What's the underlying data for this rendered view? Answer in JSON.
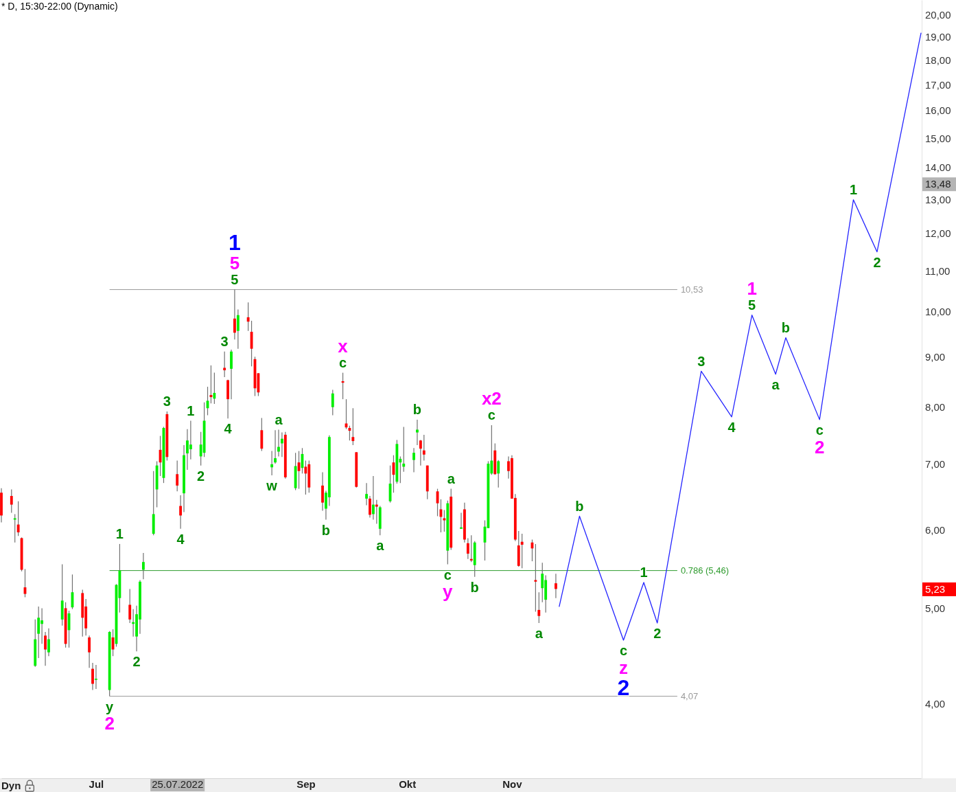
{
  "chart_data": {
    "type": "candlestick",
    "title": "* D, 15:30-22:00 (Dynamic)",
    "x": [
      "2022-06-03",
      "2022-06-06",
      "2022-06-07",
      "2022-06-08",
      "2022-06-09",
      "2022-06-10",
      "2022-06-13",
      "2022-06-14",
      "2022-06-15",
      "2022-06-16",
      "2022-06-17",
      "2022-06-21",
      "2022-06-22",
      "2022-06-23",
      "2022-06-24",
      "2022-06-27",
      "2022-06-28",
      "2022-06-29",
      "2022-06-30",
      "2022-07-01",
      "2022-07-05",
      "2022-07-06",
      "2022-07-07",
      "2022-07-08",
      "2022-07-11",
      "2022-07-12",
      "2022-07-13",
      "2022-07-14",
      "2022-07-15",
      "2022-07-18",
      "2022-07-19",
      "2022-07-20",
      "2022-07-21",
      "2022-07-22",
      "2022-07-25",
      "2022-07-26",
      "2022-07-27",
      "2022-07-28",
      "2022-07-29",
      "2022-08-01",
      "2022-08-02",
      "2022-08-03",
      "2022-08-04",
      "2022-08-05",
      "2022-08-08",
      "2022-08-09",
      "2022-08-10",
      "2022-08-11",
      "2022-08-12",
      "2022-08-15",
      "2022-08-16",
      "2022-08-17",
      "2022-08-18",
      "2022-08-19",
      "2022-08-22",
      "2022-08-23",
      "2022-08-24",
      "2022-08-25",
      "2022-08-26",
      "2022-08-29",
      "2022-08-30",
      "2022-08-31",
      "2022-09-01",
      "2022-09-02",
      "2022-09-06",
      "2022-09-07",
      "2022-09-08",
      "2022-09-09",
      "2022-09-12",
      "2022-09-13",
      "2022-09-14",
      "2022-09-15",
      "2022-09-16",
      "2022-09-19",
      "2022-09-20",
      "2022-09-21",
      "2022-09-22",
      "2022-09-23",
      "2022-09-26",
      "2022-09-27",
      "2022-09-28",
      "2022-09-29",
      "2022-09-30",
      "2022-10-03",
      "2022-10-04",
      "2022-10-05",
      "2022-10-06",
      "2022-10-07",
      "2022-10-10",
      "2022-10-11",
      "2022-10-12",
      "2022-10-13",
      "2022-10-14",
      "2022-10-17",
      "2022-10-18",
      "2022-10-19",
      "2022-10-20",
      "2022-10-21",
      "2022-10-24",
      "2022-10-25",
      "2022-10-26",
      "2022-10-27",
      "2022-10-28",
      "2022-10-31",
      "2022-11-01",
      "2022-11-02",
      "2022-11-03",
      "2022-11-04",
      "2022-11-07",
      "2022-11-08",
      "2022-11-09",
      "2022-11-10",
      "2022-11-11",
      "2022-11-14"
    ],
    "ohlc": [
      [
        6.55,
        6.62,
        6.11,
        6.21
      ],
      [
        6.5,
        6.6,
        6.25,
        6.37
      ],
      [
        6.15,
        6.23,
        5.83,
        6.17
      ],
      [
        6.08,
        6.42,
        5.92,
        5.97
      ],
      [
        5.89,
        5.9,
        5.45,
        5.47
      ],
      [
        5.25,
        5.48,
        5.13,
        5.17
      ],
      [
        4.37,
        4.87,
        4.36,
        4.65
      ],
      [
        4.71,
        5.02,
        4.45,
        4.89
      ],
      [
        4.82,
        5.0,
        4.6,
        4.86
      ],
      [
        4.69,
        4.73,
        4.37,
        4.54
      ],
      [
        4.51,
        4.77,
        4.47,
        4.65
      ],
      [
        4.87,
        5.54,
        4.8,
        5.09
      ],
      [
        5.0,
        5.07,
        4.56,
        4.6
      ],
      [
        4.75,
        4.97,
        4.56,
        4.94
      ],
      [
        5.01,
        5.41,
        4.99,
        5.19
      ],
      [
        5.18,
        5.22,
        4.68,
        4.89
      ],
      [
        5.02,
        5.11,
        4.69,
        4.77
      ],
      [
        4.67,
        4.69,
        4.35,
        4.51
      ],
      [
        4.34,
        4.4,
        4.13,
        4.19
      ],
      [
        4.23,
        4.38,
        4.14,
        4.24
      ],
      [
        4.13,
        4.74,
        4.07,
        4.73
      ],
      [
        4.67,
        4.76,
        4.47,
        4.54
      ],
      [
        4.6,
        5.29,
        4.57,
        5.28
      ],
      [
        5.12,
        5.81,
        4.95,
        5.46
      ],
      [
        5.04,
        5.23,
        4.83,
        4.87
      ],
      [
        4.82,
        4.99,
        4.68,
        4.84
      ],
      [
        4.68,
        5.03,
        4.52,
        4.93
      ],
      [
        4.87,
        5.34,
        4.71,
        5.32
      ],
      [
        5.47,
        5.69,
        5.35,
        5.57
      ],
      [
        5.95,
        6.89,
        5.93,
        6.23
      ],
      [
        6.6,
        7.05,
        6.33,
        6.98
      ],
      [
        7.24,
        7.48,
        6.81,
        7.03
      ],
      [
        6.78,
        7.64,
        6.7,
        7.62
      ],
      [
        7.87,
        7.92,
        7.06,
        7.12
      ],
      [
        6.84,
        7.06,
        6.57,
        6.66
      ],
      [
        6.35,
        6.51,
        6.02,
        6.21
      ],
      [
        6.54,
        7.32,
        6.26,
        7.15
      ],
      [
        7.18,
        7.6,
        6.91,
        7.4
      ],
      [
        7.25,
        7.75,
        7.08,
        7.33
      ],
      [
        7.13,
        7.55,
        6.98,
        7.33
      ],
      [
        7.19,
        8.09,
        7.12,
        7.75
      ],
      [
        7.98,
        8.39,
        7.85,
        8.12
      ],
      [
        8.23,
        8.82,
        8.07,
        8.19
      ],
      [
        8.16,
        8.67,
        8.06,
        8.27
      ],
      [
        8.77,
        9.11,
        8.58,
        8.72
      ],
      [
        8.52,
        8.53,
        7.79,
        8.15
      ],
      [
        8.75,
        9.15,
        8.15,
        9.11
      ],
      [
        9.84,
        10.53,
        9.37,
        9.52
      ],
      [
        9.56,
        10.05,
        9.17,
        9.92
      ],
      [
        9.87,
        10.22,
        9.56,
        9.77
      ],
      [
        9.54,
        9.79,
        8.8,
        9.17
      ],
      [
        8.95,
        9.0,
        8.21,
        8.36
      ],
      [
        8.66,
        8.66,
        8.21,
        8.28
      ],
      [
        7.58,
        7.8,
        7.22,
        7.26
      ],
      [
        6.95,
        7.22,
        6.82,
        7.0
      ],
      [
        7.03,
        7.58,
        7.01,
        7.1
      ],
      [
        7.21,
        7.59,
        7.13,
        7.29
      ],
      [
        7.35,
        7.54,
        7.12,
        7.43
      ],
      [
        7.5,
        7.55,
        6.77,
        6.79
      ],
      [
        6.62,
        7.19,
        6.59,
        6.97
      ],
      [
        7.03,
        7.22,
        6.61,
        6.89
      ],
      [
        6.94,
        7.27,
        6.85,
        7.17
      ],
      [
        6.96,
        7.06,
        6.52,
        6.85
      ],
      [
        7.0,
        7.06,
        6.55,
        6.63
      ],
      [
        6.66,
        6.87,
        6.28,
        6.4
      ],
      [
        6.31,
        6.58,
        6.15,
        6.55
      ],
      [
        6.48,
        7.49,
        6.35,
        7.46
      ],
      [
        8.0,
        8.33,
        7.85,
        8.26
      ],
      [
        8.5,
        8.67,
        8.15,
        8.47
      ],
      [
        7.7,
        8.15,
        7.6,
        7.63
      ],
      [
        7.62,
        7.66,
        7.4,
        7.57
      ],
      [
        7.46,
        7.98,
        7.32,
        7.39
      ],
      [
        7.2,
        7.2,
        6.63,
        6.64
      ],
      [
        6.46,
        6.7,
        6.36,
        6.53
      ],
      [
        6.46,
        6.5,
        6.18,
        6.22
      ],
      [
        6.23,
        6.81,
        6.15,
        6.37
      ],
      [
        6.37,
        6.44,
        6.09,
        6.34
      ],
      [
        6.02,
        6.35,
        5.93,
        6.33
      ],
      [
        6.42,
        6.98,
        6.4,
        6.69
      ],
      [
        7.03,
        7.15,
        6.55,
        6.83
      ],
      [
        6.72,
        7.41,
        6.69,
        7.34
      ],
      [
        7.03,
        7.13,
        6.7,
        7.09
      ],
      [
        6.96,
        7.64,
        6.88,
        7.01
      ],
      [
        7.07,
        7.27,
        6.87,
        7.19
      ],
      [
        7.54,
        7.77,
        7.32,
        7.59
      ],
      [
        7.4,
        7.41,
        6.98,
        7.26
      ],
      [
        7.23,
        7.5,
        7.06,
        7.16
      ],
      [
        6.98,
        6.98,
        6.45,
        6.57
      ],
      [
        6.57,
        6.61,
        6.2,
        6.39
      ],
      [
        6.3,
        6.45,
        5.97,
        6.19
      ],
      [
        6.17,
        6.29,
        5.98,
        6.14
      ],
      [
        5.72,
        6.43,
        5.54,
        6.39
      ],
      [
        6.49,
        6.61,
        5.73,
        5.76
      ],
      [
        6.02,
        6.25,
        6.02,
        6.04
      ],
      [
        6.3,
        6.4,
        5.83,
        5.87
      ],
      [
        5.82,
        5.89,
        5.61,
        5.68
      ],
      [
        5.61,
        5.93,
        5.57,
        5.59
      ],
      [
        5.53,
        5.85,
        5.38,
        5.83
      ],
      [
        5.83,
        6.14,
        5.59,
        6.05
      ],
      [
        6.03,
        7.05,
        6.03,
        7.01
      ],
      [
        6.85,
        7.67,
        6.83,
        7.06
      ],
      [
        7.23,
        7.35,
        6.83,
        6.84
      ],
      [
        6.85,
        7.07,
        6.63,
        7.05
      ],
      [
        7.05,
        7.13,
        6.77,
        6.89
      ],
      [
        7.1,
        7.15,
        6.46,
        6.46
      ],
      [
        6.47,
        6.53,
        5.85,
        5.87
      ],
      [
        5.79,
        5.99,
        5.51,
        5.52
      ],
      [
        5.84,
        5.95,
        5.49,
        5.8
      ],
      [
        5.83,
        5.87,
        5.58,
        5.75
      ],
      [
        5.34,
        5.81,
        4.96,
        5.32
      ],
      [
        4.98,
        5.19,
        4.83,
        4.91
      ],
      [
        5.24,
        5.56,
        5.07,
        5.42
      ],
      [
        5.1,
        5.4,
        4.95,
        5.34
      ],
      [
        5.3,
        5.42,
        5.12,
        5.23
      ]
    ],
    "colors": [
      "#ff0000",
      "#ff0000",
      "#00ee00",
      "#ff0000",
      "#ff0000",
      "#ff0000",
      "#00ee00",
      "#00ee00",
      "#00ee00",
      "#ff0000",
      "#00ee00",
      "#00ee00",
      "#ff0000",
      "#00ee00",
      "#00ee00",
      "#ff0000",
      "#ff0000",
      "#ff0000",
      "#ff0000",
      "#00ee00",
      "#00ee00",
      "#ff0000",
      "#00ee00",
      "#00ee00",
      "#ff0000",
      "#00ee00",
      "#00ee00",
      "#00ee00",
      "#00ee00",
      "#00ee00",
      "#00ee00",
      "#ff0000",
      "#00ee00",
      "#ff0000",
      "#ff0000",
      "#ff0000",
      "#00ee00",
      "#00ee00",
      "#00ee00",
      "#00ee00",
      "#00ee00",
      "#00ee00",
      "#ff0000",
      "#00ee00",
      "#ff0000",
      "#ff0000",
      "#00ee00",
      "#ff0000",
      "#00ee00",
      "#ff0000",
      "#ff0000",
      "#ff0000",
      "#ff0000",
      "#ff0000",
      "#00ee00",
      "#00ee00",
      "#00ee00",
      "#00ee00",
      "#ff0000",
      "#00ee00",
      "#ff0000",
      "#00ee00",
      "#ff0000",
      "#ff0000",
      "#ff0000",
      "#00ee00",
      "#00ee00",
      "#00ee00",
      "#ff0000",
      "#ff0000",
      "#ff0000",
      "#ff0000",
      "#ff0000",
      "#00ee00",
      "#ff0000",
      "#00ee00",
      "#ff0000",
      "#00ee00",
      "#00ee00",
      "#ff0000",
      "#00ee00",
      "#00ee00",
      "#00ee00",
      "#00ee00",
      "#00ee00",
      "#ff0000",
      "#ff0000",
      "#ff0000",
      "#ff0000",
      "#ff0000",
      "#ff0000",
      "#00ee00",
      "#ff0000",
      "#00ee00",
      "#ff0000",
      "#ff0000",
      "#ff0000",
      "#00ee00",
      "#00ee00",
      "#00ee00",
      "#00ee00",
      "#ff0000",
      "#00ee00",
      "#ff0000",
      "#ff0000",
      "#ff0000",
      "#ff0000",
      "#ff0000",
      "#ff0000",
      "#ff0000",
      "#ff0000",
      "#00ee00",
      "#00ee00",
      "#ff0000"
    ],
    "series": [
      {
        "type": "line",
        "color": "#2424ff",
        "x": [
          "2022-11-15",
          "2022-11-21",
          "2022-12-04",
          "2022-12-10",
          "2022-12-14",
          "2022-12-27",
          "2023-01-05",
          "2023-01-11",
          "2023-01-18",
          "2023-01-21",
          "2023-01-31",
          "2023-02-10",
          "2023-02-17",
          "2023-03-02"
        ],
        "values": [
          5.02,
          6.2,
          4.64,
          5.31,
          4.83,
          8.7,
          7.82,
          9.92,
          8.64,
          9.41,
          7.77,
          12.99,
          11.5,
          19.18
        ]
      }
    ],
    "xlim": [
      "2022-06-03",
      "2023-03-02"
    ],
    "xticks": [
      {
        "value": "2022-07-01",
        "label": "Jul"
      },
      {
        "value": "2022-07-25",
        "label": "25.07.2022"
      },
      {
        "value": "2022-09-01",
        "label": "Sep"
      },
      {
        "value": "2022-10-01",
        "label": "Okt"
      },
      {
        "value": "2022-11-01",
        "label": "Nov"
      }
    ],
    "ylim": [
      3.36,
      20.72
    ],
    "log": "y",
    "yticks": [
      {
        "value": 4,
        "label": "4,00"
      },
      {
        "value": 5,
        "label": "5,00"
      },
      {
        "value": 5.23,
        "label": "5,23"
      },
      {
        "value": 6,
        "label": "6,00"
      },
      {
        "value": 7,
        "label": "7,00"
      },
      {
        "value": 8,
        "label": "8,00"
      },
      {
        "value": 9,
        "label": "9,00"
      },
      {
        "value": 10,
        "label": "10,00"
      },
      {
        "value": 11,
        "label": "11,00"
      },
      {
        "value": 12,
        "label": "12,00"
      },
      {
        "value": 13,
        "label": "13,00"
      },
      {
        "value": 13.48,
        "label": "13,48"
      },
      {
        "value": 14,
        "label": "14,00"
      },
      {
        "value": 15,
        "label": "15,00"
      },
      {
        "value": 16,
        "label": "16,00"
      },
      {
        "value": 17,
        "label": "17,00"
      },
      {
        "value": 18,
        "label": "18,00"
      },
      {
        "value": 19,
        "label": "19,00"
      },
      {
        "value": 20,
        "label": "20,00"
      }
    ],
    "ref_lines": [
      {
        "axis": "y",
        "value": 10.53,
        "label": "10,53",
        "color": "#9a9a9a"
      },
      {
        "axis": "y",
        "value": 5.46,
        "label": "0.786 (5,46)",
        "color": "#2e9b2e"
      },
      {
        "axis": "y",
        "value": 4.07,
        "label": "4,07",
        "color": "#9a9a9a"
      }
    ],
    "annotations": [
      {
        "text": "y",
        "x": "2022-07-05",
        "y": 4.07
      },
      {
        "text": "2",
        "x": "2022-07-05",
        "y": 4.07
      },
      {
        "text": "1",
        "x": "2022-07-08",
        "y": 5.81
      },
      {
        "text": "2",
        "x": "2022-07-13",
        "y": 4.52
      },
      {
        "text": "3",
        "x": "2022-07-22",
        "y": 7.92
      },
      {
        "text": "4",
        "x": "2022-07-26",
        "y": 6.02
      },
      {
        "text": "1",
        "x": "2022-07-29",
        "y": 7.75
      },
      {
        "text": "2",
        "x": "2022-08-01",
        "y": 6.98
      },
      {
        "text": "3",
        "x": "2022-08-08",
        "y": 9.11
      },
      {
        "text": "4",
        "x": "2022-08-09",
        "y": 7.79
      },
      {
        "text": "5",
        "x": "2022-08-11",
        "y": 10.53
      },
      {
        "text": "5",
        "x": "2022-08-11",
        "y": 10.53
      },
      {
        "text": "1",
        "x": "2022-08-11",
        "y": 10.53
      },
      {
        "text": "w",
        "x": "2022-08-22",
        "y": 6.82
      },
      {
        "text": "a",
        "x": "2022-08-24",
        "y": 7.59
      },
      {
        "text": "b",
        "x": "2022-09-07",
        "y": 6.15
      },
      {
        "text": "c",
        "x": "2022-09-12",
        "y": 8.67
      },
      {
        "text": "x",
        "x": "2022-09-12",
        "y": 8.67
      },
      {
        "text": "a",
        "x": "2022-09-23",
        "y": 5.93
      },
      {
        "text": "b",
        "x": "2022-10-04",
        "y": 7.77
      },
      {
        "text": "c",
        "x": "2022-10-13",
        "y": 5.54
      },
      {
        "text": "y",
        "x": "2022-10-13",
        "y": 5.54
      },
      {
        "text": "a",
        "x": "2022-10-14",
        "y": 6.61
      },
      {
        "text": "b",
        "x": "2022-10-21",
        "y": 5.38
      },
      {
        "text": "c",
        "x": "2022-10-26",
        "y": 7.67
      },
      {
        "text": "x2",
        "x": "2022-10-26",
        "y": 7.67
      },
      {
        "text": "a",
        "x": "2022-11-09",
        "y": 4.83
      },
      {
        "text": "b",
        "x": "2022-11-21",
        "y": 6.2
      },
      {
        "text": "c",
        "x": "2022-12-04",
        "y": 4.64
      },
      {
        "text": "z",
        "x": "2022-12-04",
        "y": 4.64
      },
      {
        "text": "2",
        "x": "2022-12-04",
        "y": 4.64
      },
      {
        "text": "1",
        "x": "2022-12-10",
        "y": 5.31
      },
      {
        "text": "2",
        "x": "2022-12-14",
        "y": 4.83
      },
      {
        "text": "3",
        "x": "2022-12-27",
        "y": 8.7
      },
      {
        "text": "4",
        "x": "2023-01-05",
        "y": 7.82
      },
      {
        "text": "5",
        "x": "2023-01-11",
        "y": 9.92
      },
      {
        "text": "1",
        "x": "2023-01-11",
        "y": 9.92
      },
      {
        "text": "a",
        "x": "2023-01-18",
        "y": 8.64
      },
      {
        "text": "b",
        "x": "2023-01-21",
        "y": 9.41
      },
      {
        "text": "c",
        "x": "2023-01-31",
        "y": 7.77
      },
      {
        "text": "2",
        "x": "2023-01-31",
        "y": 7.77
      },
      {
        "text": "1",
        "x": "2023-02-10",
        "y": 12.99
      },
      {
        "text": "2",
        "x": "2023-02-17",
        "y": 11.5
      },
      "Dyn"
    ]
  }
}
